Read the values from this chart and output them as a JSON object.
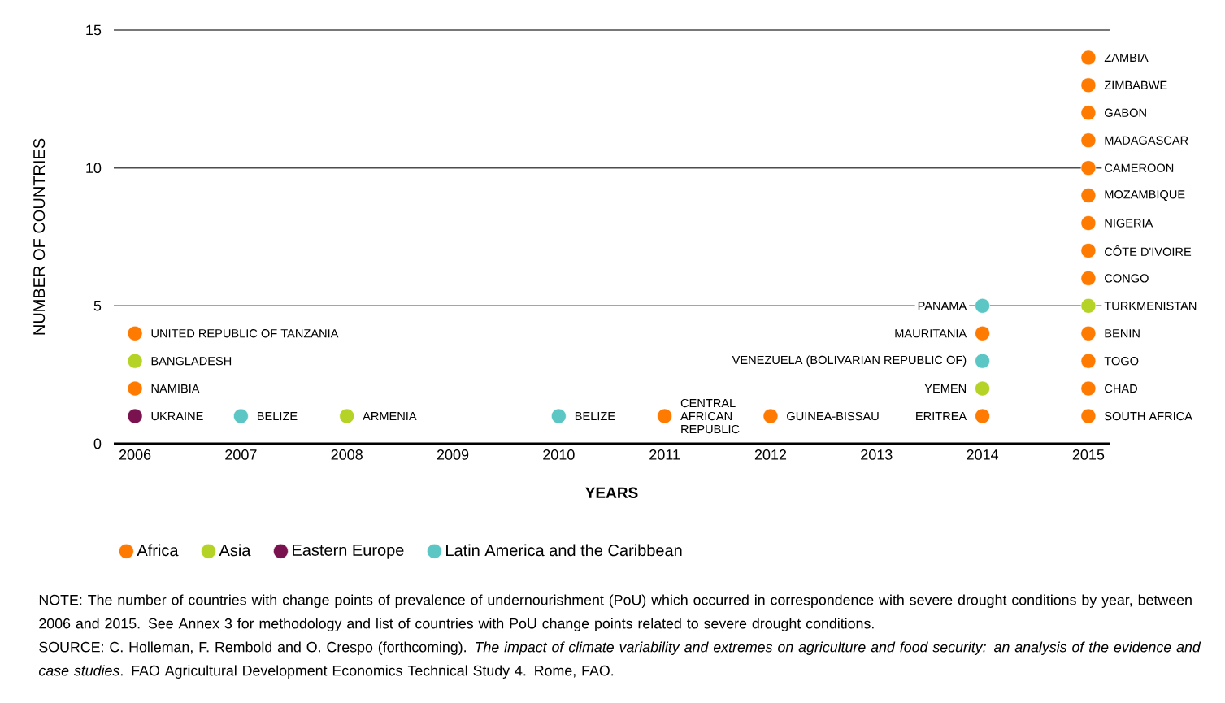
{
  "chart_data": {
    "type": "scatter",
    "xlabel": "YEARS",
    "ylabel": "NUMBER OF COUNTRIES",
    "xlim": [
      2005.8,
      2015.2
    ],
    "ylim": [
      0,
      15
    ],
    "xticks": [
      2006,
      2007,
      2008,
      2009,
      2010,
      2011,
      2012,
      2013,
      2014,
      2015
    ],
    "yticks": [
      0,
      5,
      10,
      15
    ],
    "grid": "y",
    "legend": "bottom left",
    "marker": "circle",
    "series": [
      {
        "name": "Africa",
        "color": "#ff7a00",
        "x": [
          2006,
          2006,
          2011,
          2012,
          2014,
          2014,
          2015,
          2015,
          2015,
          2015,
          2015,
          2015,
          2015,
          2015,
          2015,
          2015,
          2015,
          2015,
          2015
        ],
        "values": [
          4,
          2,
          1,
          1,
          4,
          1,
          14,
          13,
          12,
          11,
          10,
          9,
          8,
          7,
          6,
          4,
          3,
          2,
          1
        ]
      },
      {
        "name": "Asia",
        "color": "#b5d227",
        "x": [
          2006,
          2008,
          2014,
          2015
        ],
        "values": [
          3,
          1,
          2,
          5
        ]
      },
      {
        "name": "Eastern Europe",
        "color": "#7b1250",
        "x": [
          2006
        ],
        "values": [
          1
        ]
      },
      {
        "name": "Latin America and the Caribbean",
        "color": "#5cc6c4",
        "x": [
          2007,
          2010,
          2014,
          2014
        ],
        "values": [
          1,
          1,
          5,
          3
        ]
      }
    ],
    "annotations": [
      {
        "text": "UNITED REPUBLIC OF TANZANIA",
        "x": 2006,
        "y": 4
      },
      {
        "text": "BANGLADESH",
        "x": 2006,
        "y": 3
      },
      {
        "text": "NAMIBIA",
        "x": 2006,
        "y": 2
      },
      {
        "text": "UKRAINE",
        "x": 2006,
        "y": 1
      },
      {
        "text": "BELIZE",
        "x": 2007,
        "y": 1
      },
      {
        "text": "ARMENIA",
        "x": 2008,
        "y": 1
      },
      {
        "text": "BELIZE",
        "x": 2010,
        "y": 1
      },
      {
        "text": "CENTRAL AFRICAN REPUBLIC",
        "x": 2011,
        "y": 1
      },
      {
        "text": "GUINEA-BISSAU",
        "x": 2012,
        "y": 1
      },
      {
        "text": "PANAMA",
        "x": 2014,
        "y": 5
      },
      {
        "text": "MAURITANIA",
        "x": 2014,
        "y": 4
      },
      {
        "text": "VENEZUELA (BOLIVARIAN REPUBLIC OF)",
        "x": 2014,
        "y": 3
      },
      {
        "text": "YEMEN",
        "x": 2014,
        "y": 2
      },
      {
        "text": "ERITREA",
        "x": 2014,
        "y": 1
      },
      {
        "text": "ZAMBIA",
        "x": 2015,
        "y": 14
      },
      {
        "text": "ZIMBABWE",
        "x": 2015,
        "y": 13
      },
      {
        "text": "GABON",
        "x": 2015,
        "y": 12
      },
      {
        "text": "MADAGASCAR",
        "x": 2015,
        "y": 11
      },
      {
        "text": "CAMEROON",
        "x": 2015,
        "y": 10
      },
      {
        "text": "MOZAMBIQUE",
        "x": 2015,
        "y": 9
      },
      {
        "text": "NIGERIA",
        "x": 2015,
        "y": 8
      },
      {
        "text": "CÔTE D'IVOIRE",
        "x": 2015,
        "y": 7
      },
      {
        "text": "CONGO",
        "x": 2015,
        "y": 6
      },
      {
        "text": "TURKMENISTAN",
        "x": 2015,
        "y": 5
      },
      {
        "text": "BENIN",
        "x": 2015,
        "y": 4
      },
      {
        "text": "TOGO",
        "x": 2015,
        "y": 3
      },
      {
        "text": "CHAD",
        "x": 2015,
        "y": 2
      },
      {
        "text": "SOUTH AFRICA",
        "x": 2015,
        "y": 1
      },
      "NOTE: The number of countries with change points of prevalence of undernourishment (PoU) which occurred in correspondence with severe drought conditions by year, between 2006 and 2015. See Annex 3 for methodology and list of countries with PoU change points related to severe drought conditions.",
      "SOURCE: C. Holleman, F. Rembold and O. Crespo (forthcoming). *The impact of climate variability and extremes on agriculture and food security: an analysis of the evidence and case studies*. FAO Agricultural Development Economics Technical Study 4. Rome, FAO."
    ]
  }
}
